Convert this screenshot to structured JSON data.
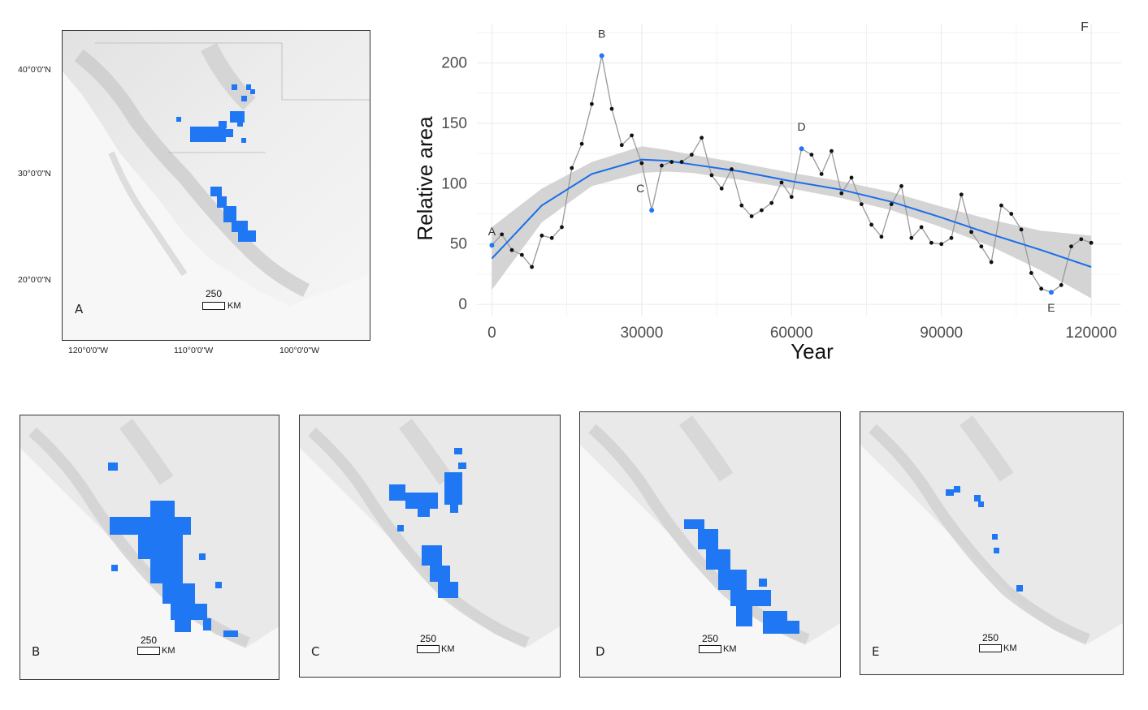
{
  "maps": {
    "main": {
      "letter": "A",
      "scale_value": "250",
      "scale_unit": "KM",
      "lat_labels": [
        "40°0'0\"N",
        "30°0'0\"N",
        "20°0'0\"N"
      ],
      "lon_labels": [
        "120°0'0\"W",
        "110°0'0\"W",
        "100°0'0\"W"
      ]
    },
    "small": [
      {
        "letter": "B",
        "scale_value": "250",
        "scale_unit": "KM"
      },
      {
        "letter": "C",
        "scale_value": "250",
        "scale_unit": "KM"
      },
      {
        "letter": "D",
        "scale_value": "250",
        "scale_unit": "KM"
      },
      {
        "letter": "E",
        "scale_value": "250",
        "scale_unit": "KM"
      }
    ]
  },
  "colors": {
    "range_fill": "#1f77f4",
    "highlight_point": "#1f77f4",
    "trend_line": "#1a6ee8",
    "confidence_band": "#cfcfcf",
    "series_line": "#999999",
    "series_point": "#111111"
  },
  "chart_data": {
    "type": "line",
    "panel_letter": "F",
    "xlabel": "Year",
    "ylabel": "Relative area",
    "xlim": [
      -3000,
      126000
    ],
    "ylim": [
      -10,
      232
    ],
    "x_ticks": [
      0,
      30000,
      60000,
      90000,
      120000
    ],
    "y_ticks": [
      0,
      50,
      100,
      150,
      200
    ],
    "grid": true,
    "series": [
      {
        "x": [
          0,
          2000,
          4000,
          6000,
          8000,
          10000,
          12000,
          14000,
          16000,
          18000,
          20000,
          22000,
          24000,
          26000,
          28000,
          30000,
          32000,
          34000,
          36000,
          38000,
          40000,
          42000,
          44000,
          46000,
          48000,
          50000,
          52000,
          54000,
          56000,
          58000,
          60000,
          62000,
          64000,
          66000,
          68000,
          70000,
          72000,
          74000,
          76000,
          78000,
          80000,
          82000,
          84000,
          86000,
          88000,
          90000,
          92000,
          94000,
          96000,
          98000,
          100000,
          102000,
          104000,
          106000,
          108000,
          110000,
          112000,
          114000,
          116000,
          118000,
          120000
        ],
        "y": [
          49,
          58,
          45,
          41,
          31,
          57,
          55,
          64,
          113,
          133,
          166,
          206,
          162,
          132,
          140,
          117,
          78,
          115,
          118,
          118,
          124,
          138,
          107,
          96,
          112,
          82,
          73,
          78,
          84,
          101,
          89,
          129,
          124,
          108,
          127,
          92,
          105,
          83,
          66,
          56,
          83,
          98,
          55,
          64,
          51,
          50,
          55,
          91,
          60,
          48,
          35,
          82,
          75,
          62,
          26,
          13,
          10,
          16,
          48,
          54,
          51
        ]
      }
    ],
    "trend": {
      "x": [
        0,
        10000,
        20000,
        30000,
        35000,
        40000,
        50000,
        60000,
        70000,
        80000,
        90000,
        100000,
        110000,
        120000
      ],
      "y": [
        38,
        82,
        108,
        120,
        119,
        116,
        110,
        102,
        95,
        85,
        72,
        58,
        45,
        31
      ],
      "lower": [
        12,
        68,
        98,
        109,
        110,
        109,
        103,
        96,
        88,
        78,
        64,
        48,
        28,
        5
      ],
      "upper": [
        64,
        96,
        118,
        131,
        128,
        124,
        117,
        109,
        102,
        93,
        81,
        70,
        61,
        57
      ]
    },
    "highlighted_points": [
      {
        "label": "A",
        "x": 0,
        "y": 49
      },
      {
        "label": "B",
        "x": 22000,
        "y": 206
      },
      {
        "label": "C",
        "x": 32000,
        "y": 78
      },
      {
        "label": "D",
        "x": 62000,
        "y": 129
      },
      {
        "label": "E",
        "x": 112000,
        "y": 10
      }
    ]
  }
}
